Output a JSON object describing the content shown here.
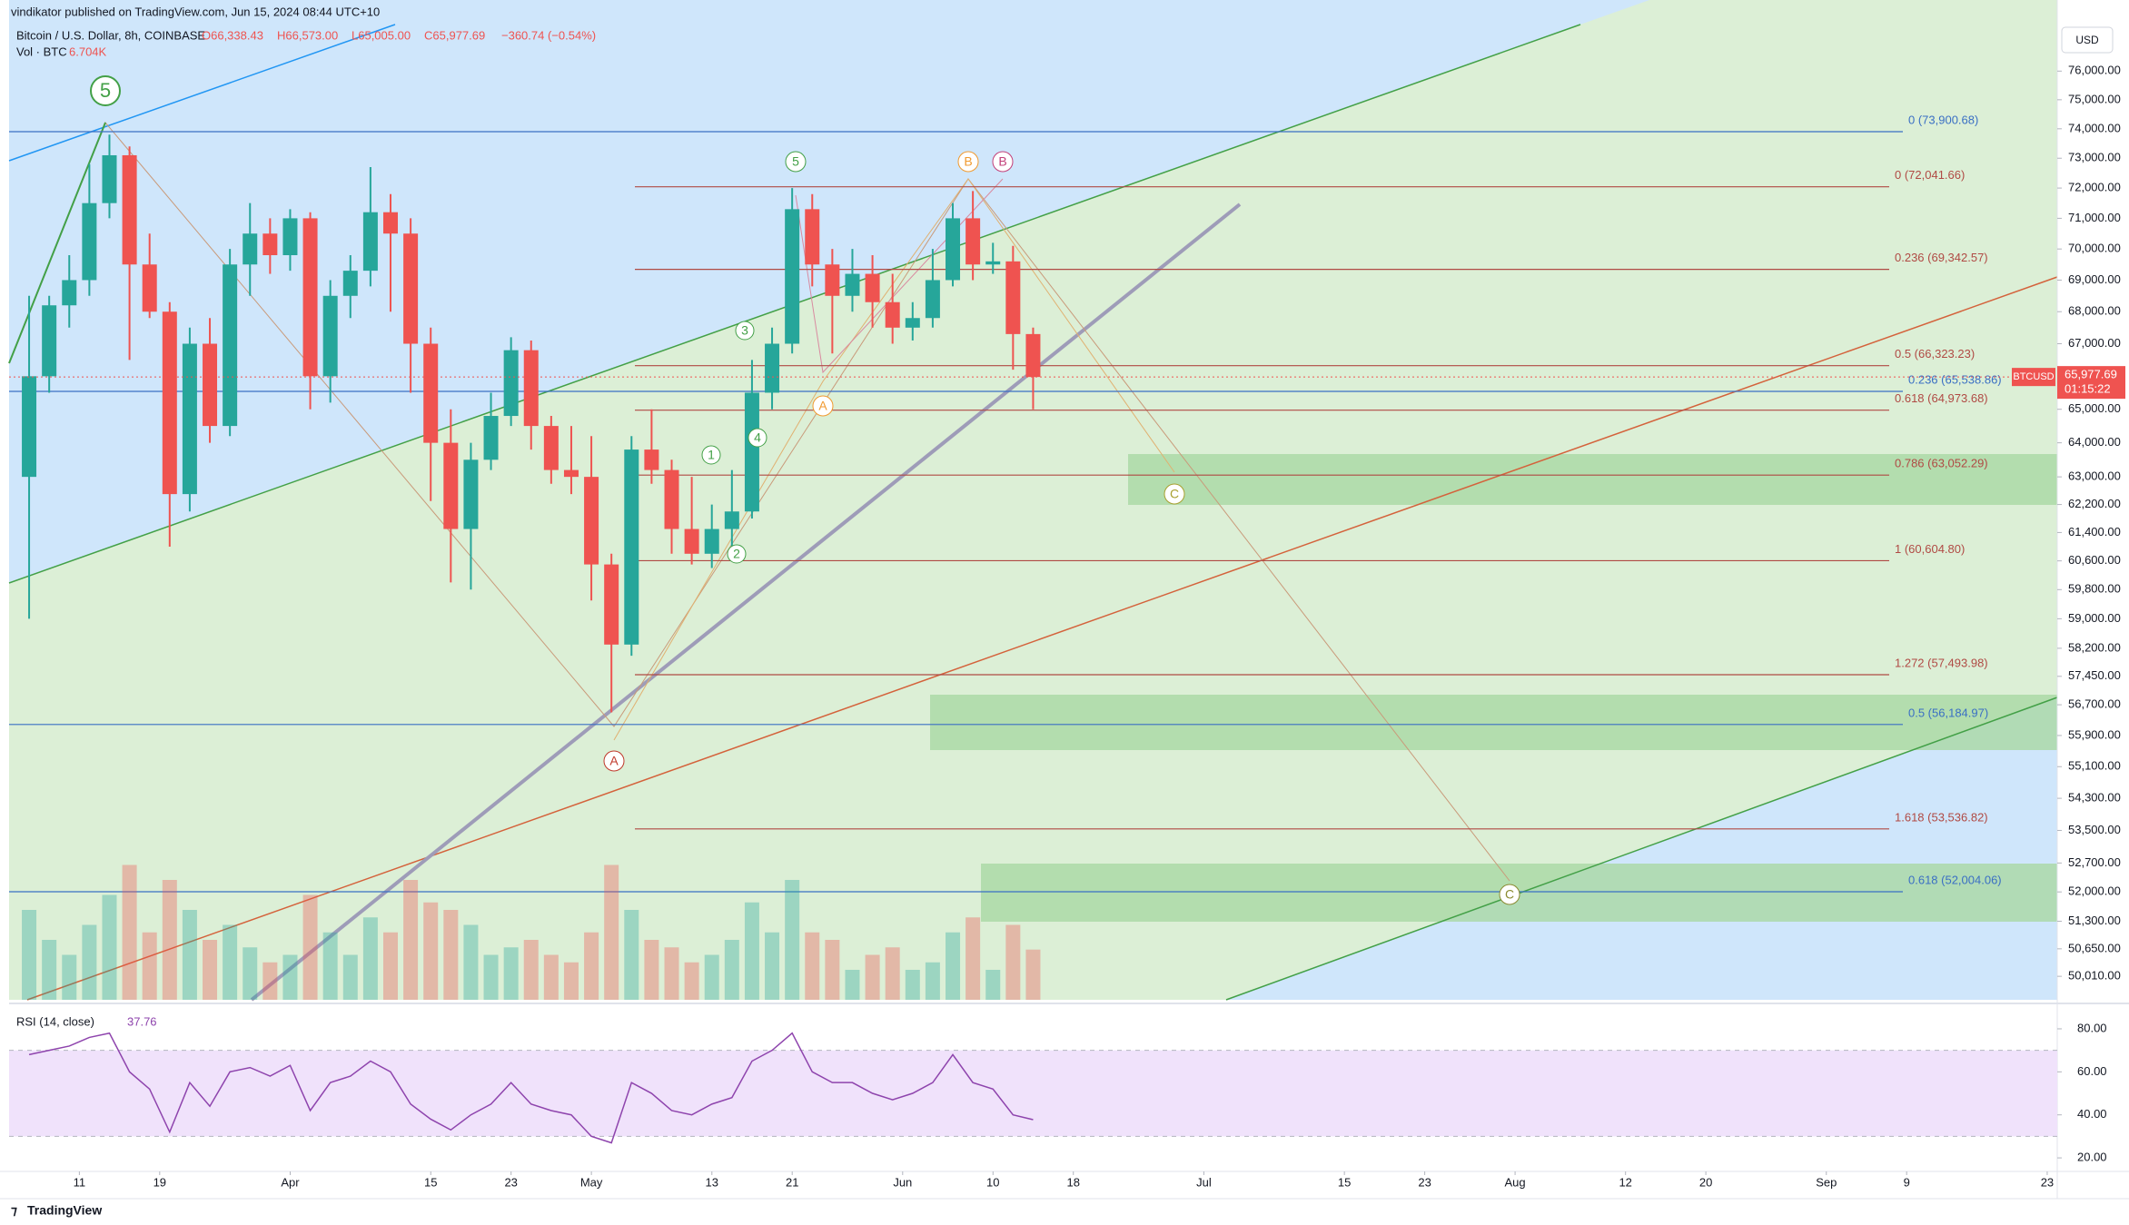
{
  "header": {
    "publisher": "vindikator published on TradingView.com, Jun 15, 2024 08:44 UTC+10",
    "symbol": "Bitcoin / U.S. Dollar, 8h, COINBASE",
    "ohlc": [
      "O66,338.43",
      "H66,573.00",
      "L65,005.00",
      "C65,977.69",
      "−360.74 (−0.54%)"
    ],
    "volume_title": "Vol · BTC",
    "volume_value": "6.704K",
    "currency": "USD"
  },
  "footer": {
    "brand": "TradingView"
  },
  "annotations": {
    "wave_labels": [
      "5",
      "5",
      "B",
      "B",
      "3",
      "1",
      "4",
      "2",
      "A",
      "C",
      "A",
      "C"
    ]
  },
  "chart_data": {
    "type": "candlestick",
    "log_scale": true,
    "x": [
      "2024-03-05",
      "2024-03-07",
      "2024-03-09",
      "2024-03-11",
      "2024-03-13",
      "2024-03-15",
      "2024-03-17",
      "2024-03-19",
      "2024-03-21",
      "2024-03-23",
      "2024-03-25",
      "2024-03-27",
      "2024-03-29",
      "2024-03-31",
      "2024-04-02",
      "2024-04-04",
      "2024-04-06",
      "2024-04-08",
      "2024-04-10",
      "2024-04-12",
      "2024-04-14",
      "2024-04-16",
      "2024-04-18",
      "2024-04-20",
      "2024-04-22",
      "2024-04-24",
      "2024-04-26",
      "2024-04-28",
      "2024-04-30",
      "2024-05-02",
      "2024-05-04",
      "2024-05-06",
      "2024-05-08",
      "2024-05-10",
      "2024-05-12",
      "2024-05-14",
      "2024-05-16",
      "2024-05-18",
      "2024-05-20",
      "2024-05-22",
      "2024-05-24",
      "2024-05-26",
      "2024-05-28",
      "2024-05-30",
      "2024-06-01",
      "2024-06-03",
      "2024-06-05",
      "2024-06-07",
      "2024-06-09",
      "2024-06-11",
      "2024-06-13"
    ],
    "open": [
      63000,
      66000,
      68200,
      69000,
      71500,
      73100,
      69500,
      68000,
      62500,
      67000,
      64500,
      69500,
      70500,
      69800,
      71000,
      66000,
      68500,
      69300,
      71200,
      70500,
      67000,
      64000,
      61500,
      63500,
      64800,
      66800,
      64500,
      63200,
      63000,
      60500,
      58300,
      63800,
      63200,
      61500,
      60800,
      61500,
      62000,
      65500,
      67000,
      71300,
      69500,
      68500,
      69200,
      68300,
      67500,
      67800,
      69000,
      71000,
      69500,
      69600,
      67300
    ],
    "high": [
      68500,
      68500,
      69800,
      72800,
      73800,
      73400,
      70500,
      68300,
      67500,
      67800,
      70000,
      71500,
      71000,
      71300,
      71200,
      69000,
      69800,
      72700,
      71800,
      71000,
      67500,
      65000,
      64000,
      65500,
      67200,
      67100,
      64800,
      64500,
      64200,
      60800,
      64200,
      65000,
      63500,
      63000,
      62200,
      63200,
      66500,
      67500,
      72000,
      71800,
      70000,
      70000,
      69800,
      69200,
      68300,
      70000,
      71500,
      71900,
      70200,
      70100,
      67500
    ],
    "low": [
      59000,
      65500,
      67500,
      68500,
      71000,
      66500,
      67800,
      61000,
      62000,
      64000,
      64200,
      68500,
      69200,
      69300,
      65000,
      65200,
      67800,
      68800,
      68000,
      65500,
      62300,
      60000,
      59800,
      63200,
      64500,
      63800,
      62800,
      62500,
      59500,
      56500,
      58000,
      62800,
      60800,
      60500,
      60400,
      60800,
      61800,
      65000,
      66700,
      68800,
      66700,
      68000,
      67500,
      67000,
      67100,
      67500,
      68800,
      69000,
      69200,
      66200,
      65000
    ],
    "close": [
      66000,
      68200,
      69000,
      71500,
      73100,
      69500,
      68000,
      62500,
      67000,
      64500,
      69500,
      70500,
      69800,
      71000,
      66000,
      68500,
      69300,
      71200,
      70500,
      67000,
      64000,
      61500,
      63500,
      64800,
      66800,
      64500,
      63200,
      63000,
      60500,
      58300,
      63800,
      63200,
      61500,
      60800,
      61500,
      62000,
      65500,
      67000,
      71300,
      69500,
      68500,
      69200,
      68300,
      67500,
      67800,
      69000,
      71000,
      69500,
      69600,
      67300,
      65977.69
    ],
    "volume": {
      "values": [
        12,
        8,
        6,
        10,
        14,
        18,
        9,
        16,
        12,
        8,
        10,
        7,
        5,
        6,
        14,
        9,
        6,
        11,
        9,
        16,
        13,
        12,
        10,
        6,
        7,
        8,
        6,
        5,
        9,
        18,
        12,
        8,
        7,
        5,
        6,
        8,
        13,
        9,
        16,
        9,
        8,
        4,
        6,
        7,
        4,
        5,
        9,
        11,
        4,
        10,
        6.704
      ],
      "ylim": [
        0,
        40
      ]
    },
    "colors": {
      "up": "#26a69a",
      "down": "#ef5350"
    },
    "xlim": [
      "2024-03-04",
      "2024-09-24"
    ],
    "xticks": [
      {
        "value": "2024-03-11",
        "label": "11"
      },
      {
        "value": "2024-03-19",
        "label": "19"
      },
      {
        "value": "2024-04-01",
        "label": "Apr"
      },
      {
        "value": "2024-04-15",
        "label": "15"
      },
      {
        "value": "2024-04-23",
        "label": "23"
      },
      {
        "value": "2024-05-01",
        "label": "May"
      },
      {
        "value": "2024-05-13",
        "label": "13"
      },
      {
        "value": "2024-05-21",
        "label": "21"
      },
      {
        "value": "2024-06-01",
        "label": "Jun"
      },
      {
        "value": "2024-06-10",
        "label": "10"
      },
      {
        "value": "2024-06-18",
        "label": "18"
      },
      {
        "value": "2024-07-01",
        "label": "Jul"
      },
      {
        "value": "2024-07-15",
        "label": "15"
      },
      {
        "value": "2024-07-23",
        "label": "23"
      },
      {
        "value": "2024-08-01",
        "label": "Aug"
      },
      {
        "value": "2024-08-12",
        "label": "12"
      },
      {
        "value": "2024-08-20",
        "label": "20"
      },
      {
        "value": "2024-09-01",
        "label": "Sep"
      },
      {
        "value": "2024-09-09",
        "label": "9"
      },
      {
        "value": "2024-09-23",
        "label": "23"
      }
    ],
    "ylim": [
      49470,
      78540
    ],
    "yticks": [
      {
        "value": 76000,
        "label": "76,000.00"
      },
      {
        "value": 75000,
        "label": "75,000.00"
      },
      {
        "value": 74000,
        "label": "74,000.00"
      },
      {
        "value": 73000,
        "label": "73,000.00"
      },
      {
        "value": 72000,
        "label": "72,000.00"
      },
      {
        "value": 71000,
        "label": "71,000.00"
      },
      {
        "value": 70000,
        "label": "70,000.00"
      },
      {
        "value": 69000,
        "label": "69,000.00"
      },
      {
        "value": 68000,
        "label": "68,000.00"
      },
      {
        "value": 67000,
        "label": "67,000.00"
      },
      {
        "value": 65000,
        "label": "65,000.00"
      },
      {
        "value": 64000,
        "label": "64,000.00"
      },
      {
        "value": 63000,
        "label": "63,000.00"
      },
      {
        "value": 62200,
        "label": "62,200.00"
      },
      {
        "value": 61400,
        "label": "61,400.00"
      },
      {
        "value": 60600,
        "label": "60,600.00"
      },
      {
        "value": 59800,
        "label": "59,800.00"
      },
      {
        "value": 59000,
        "label": "59,000.00"
      },
      {
        "value": 58200,
        "label": "58,200.00"
      },
      {
        "value": 57450,
        "label": "57,450.00"
      },
      {
        "value": 56700,
        "label": "56,700.00"
      },
      {
        "value": 55900,
        "label": "55,900.00"
      },
      {
        "value": 55100,
        "label": "55,100.00"
      },
      {
        "value": 54300,
        "label": "54,300.00"
      },
      {
        "value": 53500,
        "label": "53,500.00"
      },
      {
        "value": 52700,
        "label": "52,700.00"
      },
      {
        "value": 52000,
        "label": "52,000.00"
      },
      {
        "value": 51300,
        "label": "51,300.00"
      },
      {
        "value": 50650,
        "label": "50,650.00"
      },
      {
        "value": 50010,
        "label": "50,010.00"
      }
    ],
    "last_price": {
      "value": 65977.69,
      "label": "65,977.69",
      "symbol": "BTCUSD",
      "countdown": "01:15:22"
    },
    "fib_retracements": [
      {
        "color": "#b04a44",
        "levels": [
          {
            "value": 72041.66,
            "label": "0 (72,041.66)"
          },
          {
            "value": 69342.57,
            "label": "0.236 (69,342.57)"
          },
          {
            "value": 66323.23,
            "label": "0.5 (66,323.23)"
          },
          {
            "value": 64973.68,
            "label": "0.618 (64,973.68)"
          },
          {
            "value": 63052.29,
            "label": "0.786 (63,052.29)"
          },
          {
            "value": 60604.8,
            "label": "1 (60,604.80)"
          },
          {
            "value": 57493.98,
            "label": "1.272 (57,493.98)"
          },
          {
            "value": 53536.82,
            "label": "1.618 (53,536.82)"
          }
        ]
      },
      {
        "color": "#3a6fc4",
        "levels": [
          {
            "value": 73900.68,
            "label": "0 (73,900.68)"
          },
          {
            "value": 65538.86,
            "label": "0.236 (65,538.86)"
          },
          {
            "value": 56184.97,
            "label": "0.5 (56,184.97)"
          },
          {
            "value": 52004.06,
            "label": "0.618 (52,004.06)"
          }
        ]
      }
    ],
    "rsi": {
      "title": "RSI (14, close)",
      "last": "37.76",
      "color": "#8e44ad",
      "values": [
        68,
        70,
        72,
        76,
        78,
        60,
        52,
        32,
        55,
        44,
        60,
        62,
        58,
        63,
        42,
        55,
        58,
        65,
        60,
        45,
        38,
        33,
        40,
        45,
        55,
        45,
        42,
        40,
        30,
        27,
        55,
        50,
        42,
        40,
        45,
        48,
        65,
        70,
        78,
        60,
        55,
        55,
        50,
        47,
        50,
        55,
        68,
        55,
        52,
        40,
        37.76
      ],
      "ylim": [
        13.7,
        89.7
      ],
      "bands": [
        30,
        70
      ],
      "yticks": [
        {
          "value": 80,
          "label": "80.00"
        },
        {
          "value": 60,
          "label": "60.00"
        },
        {
          "value": 40,
          "label": "40.00"
        },
        {
          "value": 20,
          "label": "20.00"
        }
      ]
    }
  }
}
